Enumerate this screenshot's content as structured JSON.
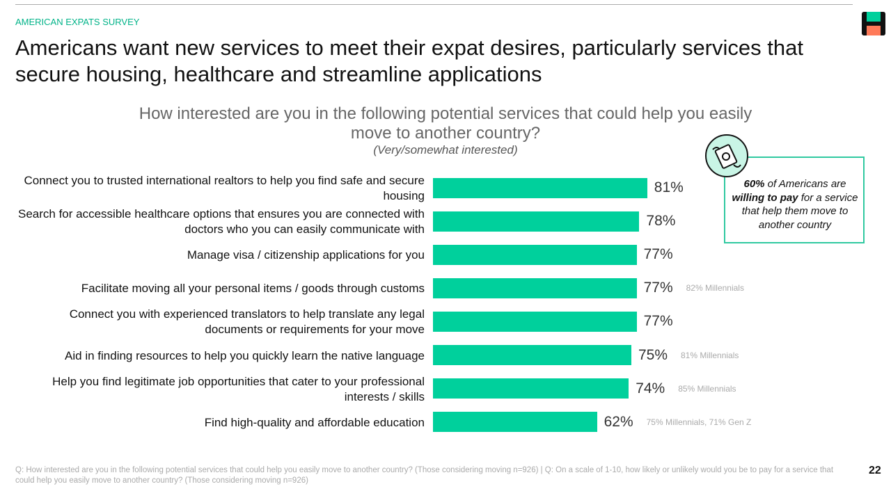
{
  "header": {
    "kicker": "AMERICAN EXPATS SURVEY",
    "title": "Americans want new services to meet their expat desires, particularly services that secure housing, healthcare and streamline applications"
  },
  "chart_data": {
    "type": "bar",
    "orientation": "horizontal",
    "title": "How interested are you in the following potential services that could help you easily move to another country?",
    "subtitle": "(Very/somewhat interested)",
    "color": "#00d09c",
    "categories": [
      "Connect you to trusted international realtors to help you find safe and secure housing",
      "Search for accessible healthcare options that ensures you are connected with doctors who you can easily communicate with",
      "Manage visa / citizenship applications for you",
      "Facilitate moving all your personal items / goods through customs",
      "Connect you with experienced translators to help translate any legal documents or requirements for your move",
      "Aid in finding resources to help you quickly learn the native language",
      "Help you find legitimate job opportunities that cater to your professional interests / skills",
      "Find high-quality and affordable education"
    ],
    "values": [
      81,
      78,
      77,
      77,
      77,
      75,
      74,
      62
    ],
    "value_labels": [
      "81%",
      "78%",
      "77%",
      "77%",
      "77%",
      "75%",
      "74%",
      "62%"
    ],
    "annotations": [
      null,
      null,
      null,
      "82% Millennials",
      null,
      "81% Millennials",
      "85% Millennials",
      "75% Millennials, 71% Gen Z"
    ]
  },
  "callout": {
    "parts": [
      "60%",
      " of Americans are ",
      "willing to pay",
      " for a service that help them move to another country"
    ]
  },
  "footer": {
    "note": "Q: How interested are you in the following potential services that could help you easily move to another country? (Those considering moving n=926) | Q: On a scale of 1-10, how likely or unlikely would you be to pay for a service that could help you easily move to another country? (Those considering moving n=926)",
    "page": "22"
  }
}
